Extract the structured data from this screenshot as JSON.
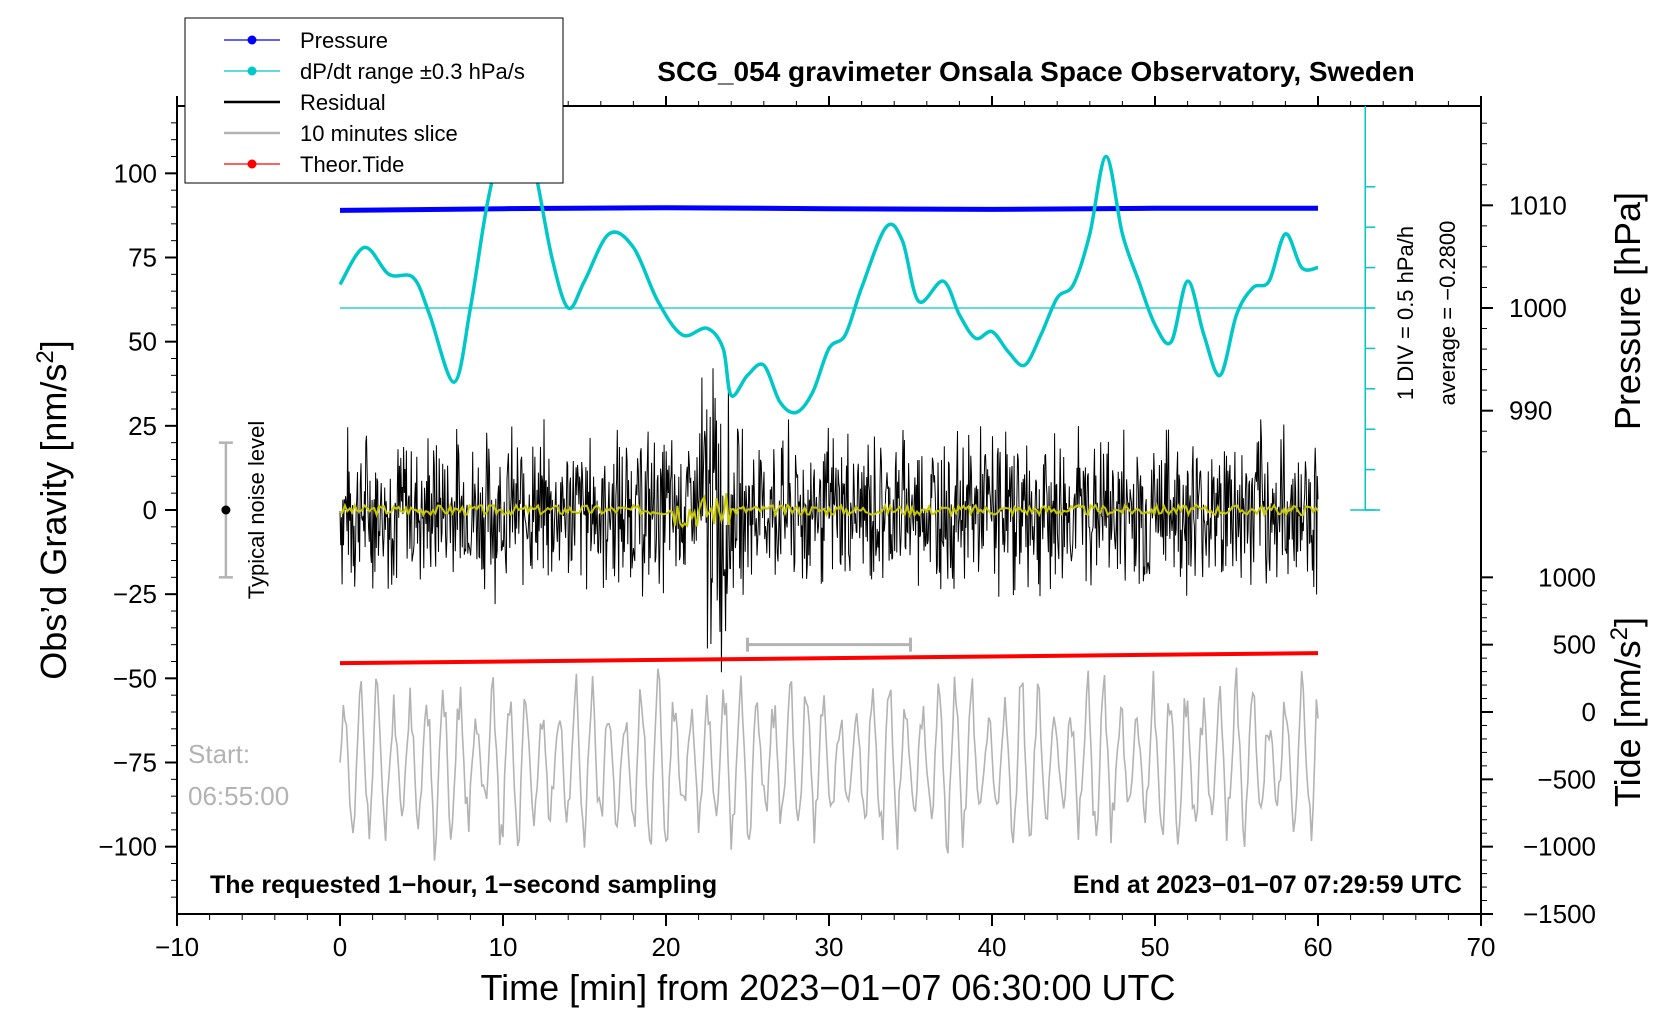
{
  "chart_data": {
    "type": "line",
    "title": "SCG_054 gravimeter Onsala Space Observatory, Sweden",
    "xlabel": "Time [min] from 2023−01−07 06:30:00 UTC",
    "ylabel_left": "Obs’d Gravity [nm/s",
    "ylabel_left_sup": "2",
    "ylabel_left_end": "]",
    "ylabel_right_pressure": "Pressure [hPa]",
    "ylabel_right_tide": "Tide [nm/s",
    "ylabel_right_tide_sup": "2",
    "ylabel_right_tide_end": "]",
    "xlim": [
      -10,
      70
    ],
    "ylim_left": [
      -120,
      120
    ],
    "x_ticks": [
      "−10",
      "0",
      "10",
      "20",
      "30",
      "40",
      "50",
      "60",
      "70"
    ],
    "x_tick_values": [
      -10,
      0,
      10,
      20,
      30,
      40,
      50,
      60,
      70
    ],
    "y_ticks_left": [
      "100",
      "75",
      "50",
      "25",
      "0",
      "−25",
      "−50",
      "−75",
      "−100"
    ],
    "y_tick_values_left": [
      100,
      75,
      50,
      25,
      0,
      -25,
      -50,
      -75,
      -100
    ],
    "pressure_ticks": [
      "1010",
      "1000",
      "990"
    ],
    "pressure_tick_values": [
      1010,
      1000,
      990
    ],
    "tide_ticks": [
      "1000",
      "500",
      "0",
      "−500",
      "−1000",
      "−1500"
    ],
    "tide_tick_values": [
      1000,
      500,
      0,
      -500,
      -1000,
      -1500
    ],
    "legend": [
      {
        "label": "Pressure",
        "color": "#0000ff",
        "marker": true
      },
      {
        "label": "dP/dt range ±0.3 hPa/s",
        "color": "#00c8c8",
        "marker": true
      },
      {
        "label": "Residual",
        "color": "#000000",
        "marker": false
      },
      {
        "label": "10 minutes slice",
        "color": "#b3b3b3",
        "marker": false
      },
      {
        "label": "Theor.Tide",
        "color": "#ff0000",
        "marker": true
      }
    ],
    "series": [
      {
        "name": "Pressure",
        "axis": "left",
        "x": [
          0,
          10,
          20,
          30,
          40,
          50,
          60
        ],
        "values": [
          89,
          89.5,
          89.8,
          89.5,
          89.3,
          89.6,
          89.6
        ]
      },
      {
        "name": "dP/dt",
        "axis": "left",
        "x": [
          0,
          1.5,
          3,
          4.5,
          5.5,
          7,
          8,
          9,
          10,
          11,
          12,
          13,
          14,
          15,
          16.5,
          18,
          19.5,
          21,
          22.5,
          23.5,
          24,
          25,
          26,
          27,
          28,
          29,
          30,
          31,
          32,
          33.5,
          34.5,
          35.5,
          37,
          38,
          39,
          40,
          41,
          42,
          43,
          44,
          45,
          46,
          47,
          48,
          49,
          50,
          51,
          52,
          53,
          54,
          55,
          56,
          57,
          58,
          59,
          60
        ],
        "values": [
          67,
          78,
          70,
          69,
          58,
          38,
          60,
          90,
          110,
          118,
          100,
          75,
          60,
          68,
          82,
          78,
          62,
          52,
          54,
          48,
          34,
          40,
          43,
          32,
          29,
          35,
          48,
          52,
          66,
          84,
          80,
          62,
          68,
          58,
          51,
          53,
          47,
          43,
          52,
          63,
          67,
          82,
          105,
          82,
          68,
          55,
          50,
          68,
          52,
          40,
          58,
          66,
          68,
          82,
          72,
          72
        ]
      },
      {
        "name": "Residual",
        "axis": "left",
        "x_range": [
          0,
          60
        ],
        "amplitude": 22
      },
      {
        "name": "10 minutes slice",
        "axis": "left",
        "x_range": [
          0,
          60
        ],
        "center": -75,
        "amplitude": 22
      },
      {
        "name": "Theor.Tide",
        "axis": "left",
        "x": [
          0,
          60
        ],
        "values": [
          -45.5,
          -42.5
        ]
      }
    ],
    "dpdt_axis": {
      "label_div": "1 DIV = 0.5 hPa/h",
      "label_avg": "average = −0.2800",
      "average_level": 60
    },
    "annotations": {
      "noise_label": "Typical noise level",
      "noise_bar": [
        -20,
        20
      ],
      "start_label": "Start:",
      "start_time": "06:55:00",
      "slice_bracket_x": [
        25,
        35
      ],
      "slice_bracket_y": -40,
      "footer_left": "The requested 1−hour, 1−second sampling",
      "footer_right": "End at 2023−01−07 07:29:59 UTC"
    }
  }
}
